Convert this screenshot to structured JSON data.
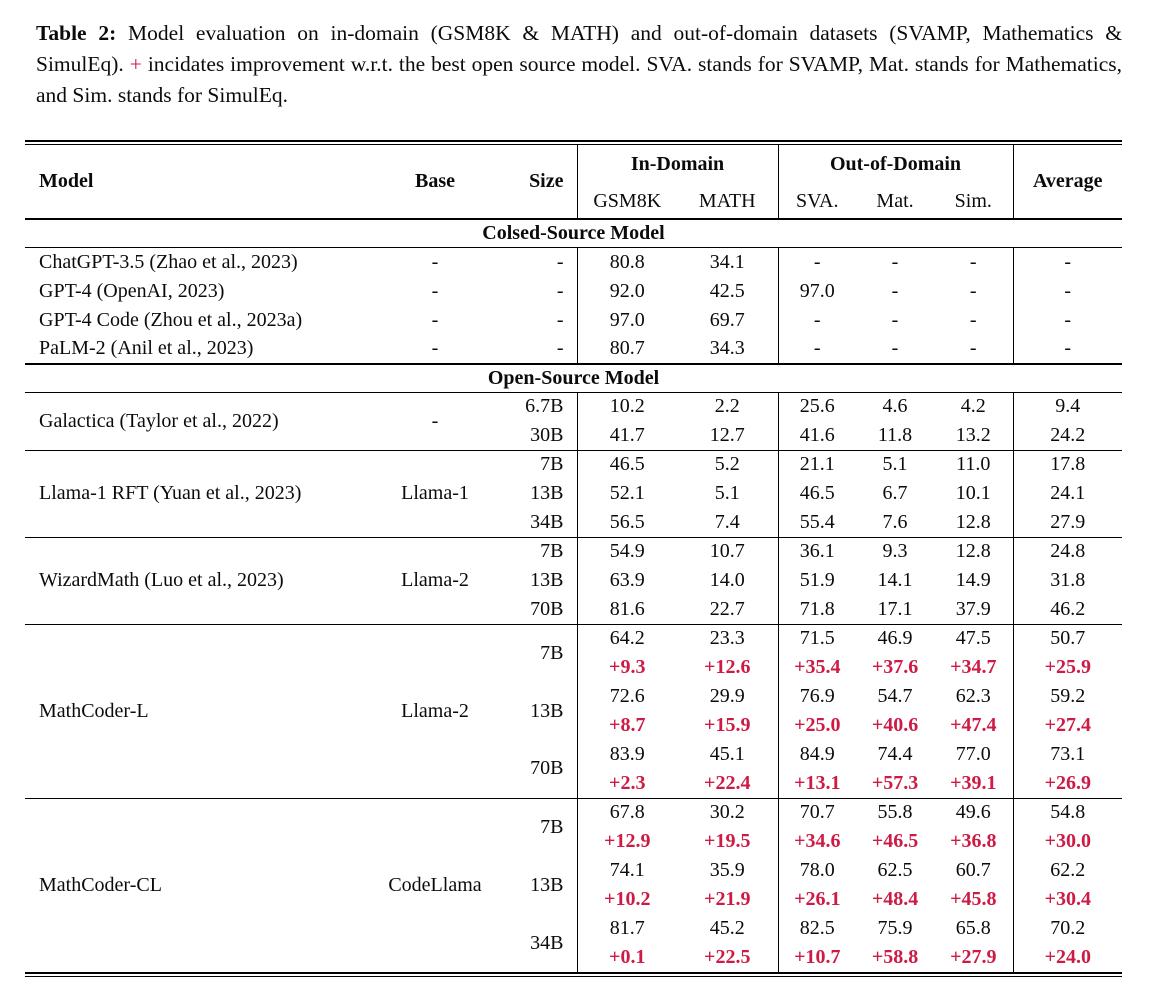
{
  "caption": {
    "label": "Table 2:",
    "before_plus": "Model evaluation on in-domain (GSM8K & MATH) and out-of-domain datasets (SVAMP, Mathematics & SimulEq).",
    "plus": "+",
    "after_plus": "incidates improvement w.r.t. the best open source model. SVA. stands for SVAMP, Mat. stands for Mathematics, and Sim. stands for SimulEq."
  },
  "colors": {
    "accent_red": "#cd1b45",
    "text": "#0b0b0b",
    "background": "#ffffff"
  },
  "table": {
    "headers": {
      "model": "Model",
      "base": "Base",
      "size": "Size",
      "in_domain": "In-Domain",
      "out_of_domain": "Out-of-Domain",
      "gsm8k": "GSM8K",
      "math": "MATH",
      "sva": "SVA.",
      "mat": "Mat.",
      "sim": "Sim.",
      "average": "Average"
    },
    "sections": [
      {
        "title": "Colsed-Source Model",
        "groups": [
          {
            "model": "ChatGPT-3.5 (Zhao et al., 2023)",
            "base": "-",
            "rows": [
              {
                "size": "-",
                "values": [
                  "80.8",
                  "34.1",
                  "-",
                  "-",
                  "-",
                  "-"
                ]
              }
            ]
          },
          {
            "model": "GPT-4 (OpenAI, 2023)",
            "base": "-",
            "rows": [
              {
                "size": "-",
                "values": [
                  "92.0",
                  "42.5",
                  "97.0",
                  "-",
                  "-",
                  "-"
                ]
              }
            ]
          },
          {
            "model": "GPT-4 Code (Zhou et al., 2023a)",
            "base": "-",
            "rows": [
              {
                "size": "-",
                "values": [
                  "97.0",
                  "69.7",
                  "-",
                  "-",
                  "-",
                  "-"
                ]
              }
            ]
          },
          {
            "model": "PaLM-2 (Anil et al., 2023)",
            "base": "-",
            "rows": [
              {
                "size": "-",
                "values": [
                  "80.7",
                  "34.3",
                  "-",
                  "-",
                  "-",
                  "-"
                ]
              }
            ]
          }
        ]
      },
      {
        "title": "Open-Source Model",
        "groups": [
          {
            "model": "Galactica (Taylor et al., 2022)",
            "base": "-",
            "rows": [
              {
                "size": "6.7B",
                "values": [
                  "10.2",
                  "2.2",
                  "25.6",
                  "4.6",
                  "4.2",
                  "9.4"
                ]
              },
              {
                "size": "30B",
                "values": [
                  "41.7",
                  "12.7",
                  "41.6",
                  "11.8",
                  "13.2",
                  "24.2"
                ]
              }
            ]
          },
          {
            "model": "Llama-1 RFT (Yuan et al., 2023)",
            "base": "Llama-1",
            "rows": [
              {
                "size": "7B",
                "values": [
                  "46.5",
                  "5.2",
                  "21.1",
                  "5.1",
                  "11.0",
                  "17.8"
                ]
              },
              {
                "size": "13B",
                "values": [
                  "52.1",
                  "5.1",
                  "46.5",
                  "6.7",
                  "10.1",
                  "24.1"
                ]
              },
              {
                "size": "34B",
                "values": [
                  "56.5",
                  "7.4",
                  "55.4",
                  "7.6",
                  "12.8",
                  "27.9"
                ]
              }
            ]
          },
          {
            "model": "WizardMath (Luo et al., 2023)",
            "base": "Llama-2",
            "rows": [
              {
                "size": "7B",
                "values": [
                  "54.9",
                  "10.7",
                  "36.1",
                  "9.3",
                  "12.8",
                  "24.8"
                ]
              },
              {
                "size": "13B",
                "values": [
                  "63.9",
                  "14.0",
                  "51.9",
                  "14.1",
                  "14.9",
                  "31.8"
                ]
              },
              {
                "size": "70B",
                "values": [
                  "81.6",
                  "22.7",
                  "71.8",
                  "17.1",
                  "37.9",
                  "46.2"
                ]
              }
            ]
          },
          {
            "model": "MathCoder-L",
            "base": "Llama-2",
            "rows": [
              {
                "size": "7B",
                "values": [
                  "64.2",
                  "23.3",
                  "71.5",
                  "46.9",
                  "47.5",
                  "50.7"
                ],
                "deltas": [
                  "+9.3",
                  "+12.6",
                  "+35.4",
                  "+37.6",
                  "+34.7",
                  "+25.9"
                ]
              },
              {
                "size": "13B",
                "values": [
                  "72.6",
                  "29.9",
                  "76.9",
                  "54.7",
                  "62.3",
                  "59.2"
                ],
                "deltas": [
                  "+8.7",
                  "+15.9",
                  "+25.0",
                  "+40.6",
                  "+47.4",
                  "+27.4"
                ]
              },
              {
                "size": "70B",
                "values": [
                  "83.9",
                  "45.1",
                  "84.9",
                  "74.4",
                  "77.0",
                  "73.1"
                ],
                "deltas": [
                  "+2.3",
                  "+22.4",
                  "+13.1",
                  "+57.3",
                  "+39.1",
                  "+26.9"
                ]
              }
            ]
          },
          {
            "model": "MathCoder-CL",
            "base": "CodeLlama",
            "rows": [
              {
                "size": "7B",
                "values": [
                  "67.8",
                  "30.2",
                  "70.7",
                  "55.8",
                  "49.6",
                  "54.8"
                ],
                "deltas": [
                  "+12.9",
                  "+19.5",
                  "+34.6",
                  "+46.5",
                  "+36.8",
                  "+30.0"
                ]
              },
              {
                "size": "13B",
                "values": [
                  "74.1",
                  "35.9",
                  "78.0",
                  "62.5",
                  "60.7",
                  "62.2"
                ],
                "deltas": [
                  "+10.2",
                  "+21.9",
                  "+26.1",
                  "+48.4",
                  "+45.8",
                  "+30.4"
                ]
              },
              {
                "size": "34B",
                "values": [
                  "81.7",
                  "45.2",
                  "82.5",
                  "75.9",
                  "65.8",
                  "70.2"
                ],
                "deltas": [
                  "+0.1",
                  "+22.5",
                  "+10.7",
                  "+58.8",
                  "+27.9",
                  "+24.0"
                ]
              }
            ]
          }
        ]
      }
    ]
  }
}
